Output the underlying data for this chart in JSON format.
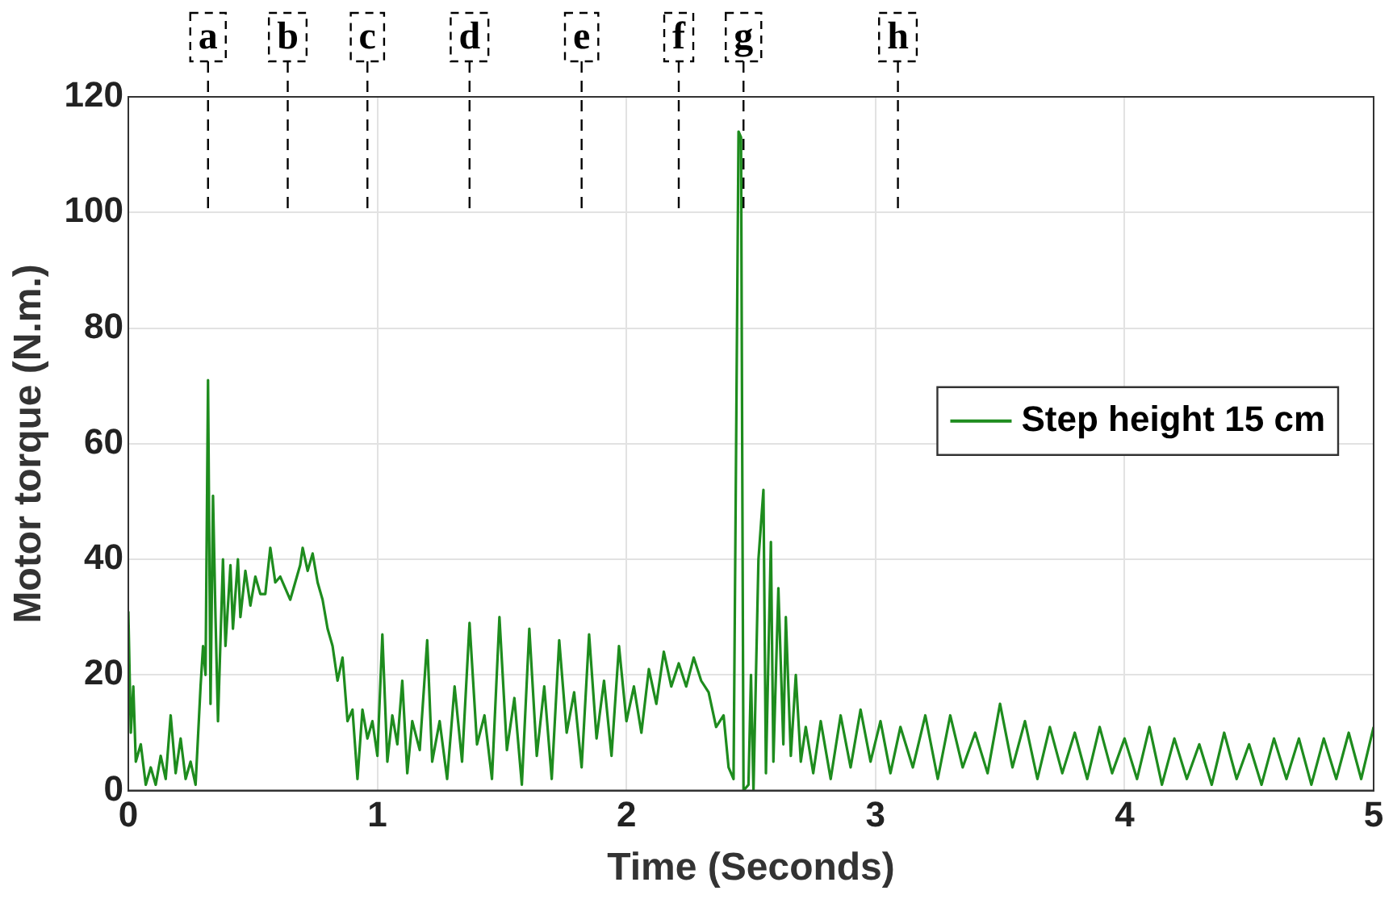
{
  "chart_data": {
    "type": "line",
    "xlabel": "Time (Seconds)",
    "ylabel": "Motor torque (N.m.)",
    "xlim": [
      0,
      5
    ],
    "xticks": [
      0,
      1,
      2,
      3,
      4,
      5
    ],
    "ylim": [
      0,
      120
    ],
    "yticks": [
      0,
      20,
      40,
      60,
      80,
      100,
      120
    ],
    "grid": true,
    "legend": "right",
    "marker": "none",
    "line_style": "solid",
    "ref_lines": [
      {
        "axis": "x",
        "value": 0.32,
        "label": "a",
        "line_style": "dashed"
      },
      {
        "axis": "x",
        "value": 0.64,
        "label": "b",
        "line_style": "dashed"
      },
      {
        "axis": "x",
        "value": 0.96,
        "label": "c",
        "line_style": "dashed"
      },
      {
        "axis": "x",
        "value": 1.37,
        "label": "d",
        "line_style": "dashed"
      },
      {
        "axis": "x",
        "value": 1.82,
        "label": "e",
        "line_style": "dashed"
      },
      {
        "axis": "x",
        "value": 2.21,
        "label": "f",
        "line_style": "dashed"
      },
      {
        "axis": "x",
        "value": 2.47,
        "label": "g",
        "line_style": "dashed"
      },
      {
        "axis": "x",
        "value": 3.09,
        "label": "h",
        "line_style": "dashed"
      }
    ],
    "series": [
      {
        "name": "Step height 15 cm",
        "color": "#1e8c1e",
        "x": [
          0,
          0.01,
          0.02,
          0.03,
          0.05,
          0.07,
          0.09,
          0.11,
          0.13,
          0.15,
          0.17,
          0.19,
          0.21,
          0.23,
          0.25,
          0.27,
          0.29,
          0.3,
          0.31,
          0.32,
          0.33,
          0.34,
          0.35,
          0.36,
          0.38,
          0.39,
          0.41,
          0.42,
          0.44,
          0.45,
          0.47,
          0.49,
          0.51,
          0.53,
          0.55,
          0.57,
          0.59,
          0.61,
          0.63,
          0.65,
          0.67,
          0.69,
          0.7,
          0.72,
          0.74,
          0.76,
          0.78,
          0.8,
          0.82,
          0.84,
          0.86,
          0.88,
          0.9,
          0.92,
          0.94,
          0.96,
          0.98,
          1,
          1.02,
          1.04,
          1.06,
          1.08,
          1.1,
          1.12,
          1.14,
          1.17,
          1.2,
          1.22,
          1.25,
          1.28,
          1.31,
          1.34,
          1.37,
          1.4,
          1.43,
          1.46,
          1.49,
          1.52,
          1.55,
          1.58,
          1.61,
          1.64,
          1.67,
          1.7,
          1.73,
          1.76,
          1.79,
          1.82,
          1.85,
          1.88,
          1.91,
          1.94,
          1.97,
          2,
          2.03,
          2.06,
          2.09,
          2.12,
          2.15,
          2.18,
          2.21,
          2.24,
          2.27,
          2.3,
          2.33,
          2.36,
          2.39,
          2.41,
          2.43,
          2.45,
          2.46,
          2.47,
          2.49,
          2.5,
          2.51,
          2.53,
          2.55,
          2.56,
          2.58,
          2.59,
          2.61,
          2.63,
          2.64,
          2.66,
          2.68,
          2.7,
          2.72,
          2.75,
          2.78,
          2.82,
          2.86,
          2.9,
          2.94,
          2.98,
          3.02,
          3.06,
          3.1,
          3.15,
          3.2,
          3.25,
          3.3,
          3.35,
          3.4,
          3.45,
          3.5,
          3.55,
          3.6,
          3.65,
          3.7,
          3.75,
          3.8,
          3.85,
          3.9,
          3.95,
          4,
          4.05,
          4.1,
          4.15,
          4.2,
          4.25,
          4.3,
          4.35,
          4.4,
          4.45,
          4.5,
          4.55,
          4.6,
          4.65,
          4.7,
          4.75,
          4.8,
          4.85,
          4.9,
          4.95,
          5
        ],
        "values": [
          31,
          10,
          18,
          5,
          8,
          1,
          4,
          1,
          6,
          2,
          13,
          3,
          9,
          2,
          5,
          1,
          18,
          25,
          20,
          71,
          15,
          51,
          30,
          12,
          40,
          25,
          39,
          28,
          40,
          30,
          38,
          32,
          37,
          34,
          34,
          42,
          36,
          37,
          35,
          33,
          36,
          39,
          42,
          38,
          41,
          36,
          33,
          28,
          25,
          19,
          23,
          12,
          14,
          2,
          14,
          9,
          12,
          6,
          27,
          5,
          13,
          8,
          19,
          3,
          12,
          7,
          26,
          5,
          12,
          2,
          18,
          5,
          29,
          8,
          13,
          2,
          30,
          7,
          16,
          1,
          28,
          6,
          18,
          2,
          26,
          10,
          17,
          4,
          27,
          9,
          19,
          6,
          25,
          12,
          18,
          10,
          21,
          15,
          24,
          18,
          22,
          18,
          23,
          19,
          17,
          11,
          13,
          4,
          2,
          114,
          113,
          0,
          1,
          20,
          0,
          40,
          52,
          3,
          43,
          5,
          35,
          8,
          30,
          6,
          20,
          5,
          11,
          3,
          12,
          2,
          13,
          4,
          14,
          5,
          12,
          3,
          11,
          4,
          13,
          2,
          13,
          4,
          10,
          3,
          15,
          4,
          12,
          2,
          11,
          3,
          10,
          2,
          11,
          3,
          9,
          2,
          11,
          1,
          9,
          2,
          8,
          1,
          10,
          2,
          8,
          1,
          9,
          2,
          9,
          1,
          9,
          2,
          10,
          2,
          11
        ]
      }
    ]
  }
}
